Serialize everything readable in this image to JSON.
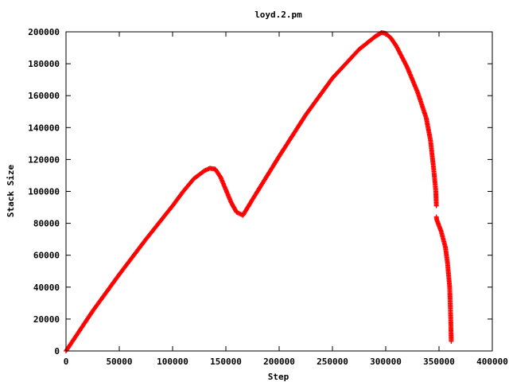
{
  "chart_data": {
    "type": "scatter",
    "title": "loyd.2.pm",
    "xlabel": "Step",
    "ylabel": "Stack Size",
    "xlim": [
      0,
      400000
    ],
    "ylim": [
      0,
      200000
    ],
    "x_ticks": [
      0,
      50000,
      100000,
      150000,
      200000,
      250000,
      300000,
      350000,
      400000
    ],
    "y_ticks": [
      0,
      20000,
      40000,
      60000,
      80000,
      100000,
      120000,
      140000,
      160000,
      180000,
      200000
    ],
    "x_tick_labels": [
      "0",
      "50000",
      "100000",
      "150000",
      "200000",
      "250000",
      "300000",
      "350000",
      "400000"
    ],
    "y_tick_labels": [
      "0",
      "20000",
      "40000",
      "60000",
      "80000",
      "100000",
      "120000",
      "140000",
      "160000",
      "180000",
      "200000"
    ],
    "grid": false,
    "marker": "plus",
    "series": [
      {
        "color": "#ff0000",
        "x": [
          0,
          25000,
          50000,
          75000,
          100000,
          110000,
          120000,
          130000,
          135000,
          140000,
          145000,
          150000,
          155000,
          160000,
          166000,
          175000,
          200000,
          225000,
          250000,
          275000,
          290000,
          296000,
          300000,
          305000,
          310000,
          320000,
          330000,
          338000,
          342000,
          345000,
          347000,
          347500,
          347500,
          348000,
          352000,
          356000,
          358000,
          360000,
          361000,
          361500
        ],
        "y": [
          0,
          25000,
          48000,
          70000,
          91000,
          100000,
          108000,
          113000,
          114500,
          114000,
          109000,
          101000,
          93000,
          87000,
          85000,
          95000,
          122000,
          148000,
          171000,
          189000,
          197000,
          199500,
          199000,
          196000,
          191000,
          178000,
          162000,
          146000,
          132000,
          114000,
          100000,
          91000,
          84000,
          82000,
          75000,
          65000,
          55000,
          40000,
          20000,
          6000
        ]
      }
    ]
  }
}
